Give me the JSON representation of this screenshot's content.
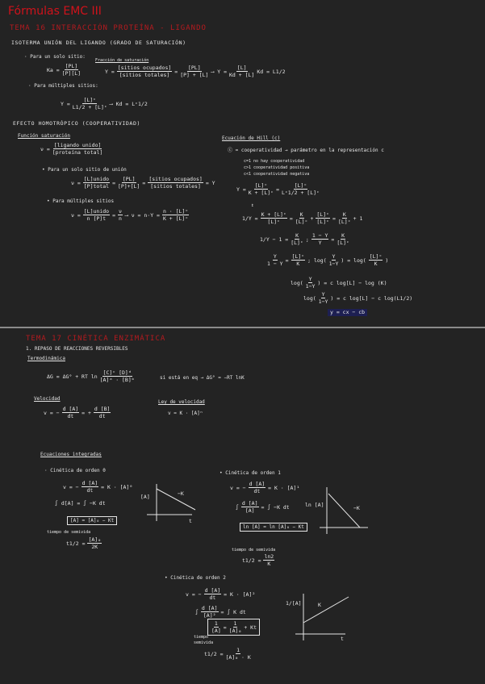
{
  "title": "Fórmulas EMC III",
  "tema16": {
    "heading": "TEMA 16  INTERACCIÓN PROTEÍNA - LIGANDO",
    "isoterma": "ISOTERMA UNIÓN DEL LIGANDO (GRADO DE SATURACIÓN)",
    "un_sitio_label": "· Para un solo sitio:",
    "ka_eq": [
      "Ka =",
      {
        "n": "[PL]",
        "d": "[P][L]"
      }
    ],
    "fraccion_label": "Fracción de saturación",
    "y_eq": [
      "Y =",
      {
        "n": "[sitios ocupados]",
        "d": "[sitios totales]"
      },
      "=",
      {
        "n": "[PL]",
        "d": "[P] + [L]"
      },
      "⟶  Y =",
      {
        "n": "[L]",
        "d": "Kd + [L]"
      },
      "   Kd = L1/2"
    ],
    "multiples_label": "· Para múltiples sitios:",
    "y_multi_eq": [
      "Y =",
      {
        "n": "[L]ᶜ",
        "d": "L1/2 + [L]ᶜ"
      },
      "⟶ Kd = Lᶜ1/2"
    ],
    "efecto": "EFECTO HOMOTRÓPICO (COOPERATIVIDAD)",
    "funcion_label": "Función saturación",
    "nu_eq": [
      "ν =",
      {
        "n": "[ligando unido]",
        "d": "[proteína total]"
      }
    ],
    "un_sitio_union_label": "• Para un solo sitio de unión",
    "nu_single_eq": [
      "ν =",
      {
        "n": "[L]unido",
        "d": "[P]total"
      },
      "=",
      {
        "n": "[PL]",
        "d": "[P]+[L]"
      },
      "=",
      {
        "n": "[sitios ocupados]",
        "d": "[sitios totales]"
      },
      "= Y"
    ],
    "multiples_sitios_label": "• Para múltiples sitios",
    "nu_multi_eq": [
      "ν =",
      {
        "n": "[L]unido",
        "d": "n [P]t"
      },
      "=",
      {
        "n": "ν",
        "d": "n"
      },
      "⟶ ν = n·Y =",
      {
        "n": "n · [L]ᶜ",
        "d": "K + [L]ᶜ"
      }
    ],
    "hill": {
      "label": "Ecuación de Hill (c)",
      "coop": "ⓒ = cooperatividad → parámetro en la representación c",
      "cases": [
        "c=1 no hay cooperatividad",
        "c>1 cooperatividad positiva",
        "c<1 cooperatividad negativa"
      ],
      "eq1": [
        "Y =",
        {
          "n": "[L]ᶜ",
          "d": "K + [L]ᶜ"
        },
        "=",
        {
          "n": "[L]ᶜ",
          "d": "Lᶜ1/2 + [L]ᶜ"
        }
      ],
      "eq2": [
        "1/Y =",
        {
          "n": "K + [L]ᶜ",
          "d": "[L]ᶜ"
        },
        "=",
        {
          "n": "K",
          "d": "[L]ᶜ"
        },
        "+",
        {
          "n": "[L]ᶜ",
          "d": "[L]ᶜ"
        },
        "=",
        {
          "n": "K",
          "d": "[L]ᶜ"
        },
        "+ 1"
      ],
      "eq3": [
        "1/Y − 1 =",
        {
          "n": "K",
          "d": "[L]ᶜ"
        },
        " ;  ",
        {
          "n": "1 − Y",
          "d": "Y"
        },
        "=",
        {
          "n": "K",
          "d": "[L]ᶜ"
        }
      ],
      "eq4": [
        {
          "n": "Y",
          "d": "1 − Y"
        },
        "=",
        {
          "n": "[L]ᶜ",
          "d": "K"
        },
        " ;  log(",
        {
          "n": "Y",
          "d": "1−Y"
        },
        ") = log(",
        {
          "n": "[L]ᶜ",
          "d": "K"
        },
        ")"
      ],
      "eq5": [
        "log(",
        {
          "n": "Y",
          "d": "1−Y"
        },
        ") = c log[L] − log (K)"
      ],
      "eq6": [
        "log(",
        {
          "n": "Y",
          "d": "1−Y"
        },
        ") = c log[L] − c log(L1/2)"
      ],
      "eq7": "y = cx − cb"
    }
  },
  "tema17": {
    "heading": "TEMA 17  CINÉTICA ENZIMÁTICA",
    "repaso": "1. REPASO DE REACCIONES REVERSIBLES",
    "termo_label": "Termodinámica",
    "dg_eq": [
      "ΔG = ΔG° + RT ln",
      {
        "n": "[C]ᶜ [D]ᵈ",
        "d": "[A]ᵃ · [B]ᵇ"
      }
    ],
    "dg_note": "si está en eq → ΔG° = −RT lnK",
    "velocidad_label": "Velocidad",
    "v_eq": [
      "v = −",
      {
        "n": "d [A]",
        "d": "dt"
      },
      "= +",
      {
        "n": "d [B]",
        "d": "dt"
      }
    ],
    "ley_label": "Ley de velocidad",
    "ley_eq": "v = K · [A]ⁿ",
    "integradas_label": "Ecuaciones integradas",
    "orden0": {
      "label": "· Cinética de orden 0",
      "v": [
        "v = −",
        {
          "n": "d [A]",
          "d": "dt"
        },
        "= K · [A]⁰"
      ],
      "int": [
        "∫ d[A]  =  ∫ −K dt"
      ],
      "result": "[A] = [A]₀ − Kt",
      "semivida_label": "tiempo de semivida",
      "t_half": [
        "t1/2 =",
        {
          "n": "[A]₀",
          "d": "2K"
        }
      ],
      "graph": {
        "y": "[A]",
        "x": "t",
        "slope": "−K"
      }
    },
    "orden1": {
      "label": "• Cinética de orden 1",
      "v": [
        "v = −",
        {
          "n": "d [A]",
          "d": "dt"
        },
        "= K · [A]¹"
      ],
      "int": [
        "∫",
        {
          "n": "d [A]",
          "d": "[A]"
        },
        "= ∫ −K dt"
      ],
      "result": "ln [A] = ln [A]₀ − Kt",
      "semivida_label": "tiempo de semivida",
      "t_half": [
        "t1/2 =",
        {
          "n": "ln2",
          "d": "K"
        }
      ],
      "graph": {
        "y": "ln [A]",
        "slope": "−K"
      }
    },
    "orden2": {
      "label": "• Cinética de orden 2",
      "v": [
        "v = −",
        {
          "n": "d [A]",
          "d": "dt"
        },
        "= K · [A]²"
      ],
      "int": [
        "∫",
        {
          "n": "d [A]",
          "d": "[A]²"
        },
        "= ∫ K dt"
      ],
      "result": [
        "",
        {
          "n": "1",
          "d": "[A]"
        },
        "=",
        {
          "n": "1",
          "d": "[A]₀"
        },
        "+ Kt"
      ],
      "semivida_label": "tiempo semivida",
      "t_half": [
        "t1/2 =",
        {
          "n": "1",
          "d": "[A]₀ · K"
        }
      ],
      "graph": {
        "y": "1/[A]",
        "x": "t",
        "slope": "K"
      }
    }
  }
}
